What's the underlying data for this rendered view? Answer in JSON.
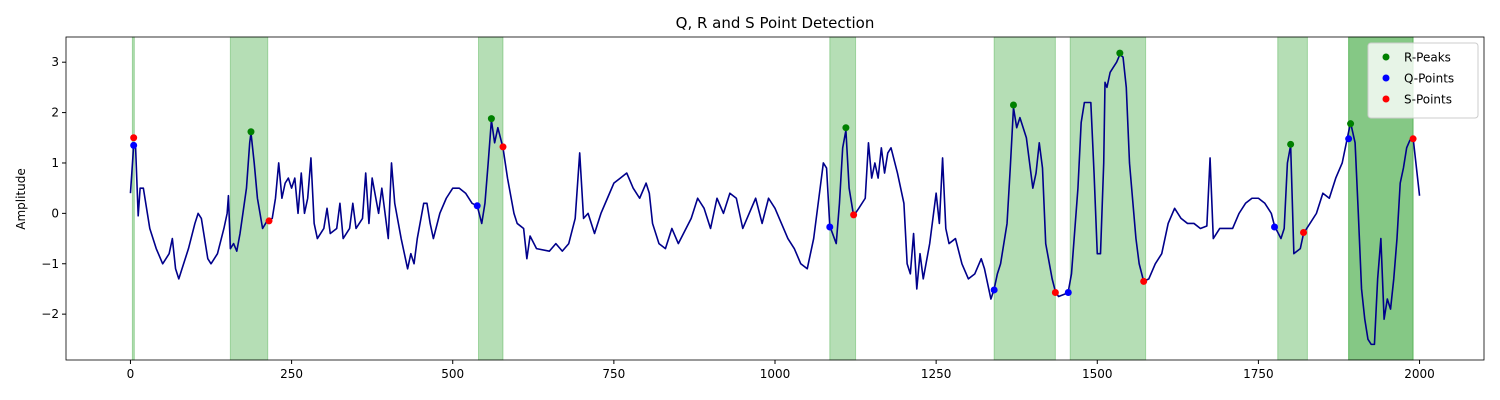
{
  "chart_data": {
    "type": "line",
    "title": "Q, R and S Point Detection",
    "ylabel": "Amplitude",
    "xlim": [
      -100,
      2100
    ],
    "ylim": [
      -2.91,
      3.5
    ],
    "xticks": [
      0,
      250,
      500,
      750,
      1000,
      1250,
      1500,
      1750,
      2000
    ],
    "yticks": [
      {
        "value": -2,
        "label": "−2"
      },
      {
        "value": -1,
        "label": "−1"
      },
      0,
      1,
      2,
      3
    ],
    "legend": "upper right",
    "span_color": "#2ca02c",
    "span_alpha": 0.35,
    "spans": [
      [
        3,
        6
      ],
      [
        155,
        213
      ],
      [
        540,
        578
      ],
      [
        1085,
        1125
      ],
      [
        1340,
        1435
      ],
      [
        1458,
        1575
      ],
      [
        1780,
        1826
      ],
      [
        1890,
        1990
      ],
      [
        1890,
        1990
      ]
    ],
    "signal": {
      "color": "#00008b",
      "x": [
        0,
        5,
        8,
        12,
        15,
        20,
        25,
        30,
        40,
        50,
        60,
        65,
        70,
        75,
        80,
        90,
        100,
        105,
        110,
        120,
        125,
        135,
        145,
        150,
        152,
        155,
        160,
        165,
        170,
        175,
        180,
        185,
        187,
        192,
        197,
        205,
        212,
        220,
        225,
        230,
        235,
        240,
        245,
        250,
        255,
        260,
        265,
        270,
        275,
        280,
        285,
        290,
        300,
        305,
        310,
        320,
        325,
        330,
        340,
        345,
        350,
        360,
        365,
        370,
        375,
        385,
        390,
        400,
        405,
        410,
        420,
        430,
        435,
        440,
        445,
        455,
        460,
        465,
        470,
        480,
        490,
        500,
        510,
        520,
        530,
        538,
        545,
        550,
        555,
        560,
        565,
        570,
        578,
        585,
        595,
        600,
        610,
        615,
        620,
        630,
        650,
        660,
        670,
        680,
        690,
        697,
        703,
        710,
        720,
        730,
        740,
        750,
        760,
        770,
        780,
        790,
        800,
        805,
        810,
        820,
        830,
        840,
        850,
        860,
        870,
        880,
        890,
        900,
        910,
        920,
        930,
        940,
        950,
        960,
        970,
        980,
        990,
        1000,
        1010,
        1020,
        1030,
        1040,
        1050,
        1060,
        1070,
        1075,
        1080,
        1085,
        1095,
        1100,
        1105,
        1110,
        1115,
        1122,
        1130,
        1140,
        1145,
        1150,
        1155,
        1160,
        1165,
        1170,
        1175,
        1180,
        1190,
        1200,
        1205,
        1210,
        1215,
        1220,
        1225,
        1230,
        1240,
        1250,
        1255,
        1260,
        1265,
        1270,
        1280,
        1290,
        1300,
        1310,
        1320,
        1325,
        1335,
        1340,
        1345,
        1350,
        1360,
        1365,
        1370,
        1375,
        1380,
        1390,
        1400,
        1405,
        1410,
        1415,
        1420,
        1430,
        1435,
        1440,
        1450,
        1455,
        1460,
        1470,
        1475,
        1480,
        1490,
        1495,
        1500,
        1505,
        1510,
        1512,
        1515,
        1520,
        1525,
        1530,
        1535,
        1540,
        1545,
        1550,
        1560,
        1565,
        1572,
        1580,
        1590,
        1600,
        1610,
        1620,
        1630,
        1640,
        1650,
        1660,
        1670,
        1675,
        1680,
        1690,
        1700,
        1710,
        1720,
        1730,
        1740,
        1750,
        1760,
        1770,
        1775,
        1785,
        1790,
        1795,
        1800,
        1805,
        1815,
        1820,
        1825,
        1830,
        1840,
        1850,
        1860,
        1870,
        1880,
        1888,
        1893,
        1900,
        1905,
        1910,
        1915,
        1920,
        1925,
        1930,
        1935,
        1940,
        1945,
        1950,
        1955,
        1960,
        1965,
        1970,
        1975,
        1980,
        1985,
        1990,
        2000
      ],
      "values": [
        0.4,
        1.35,
        1.3,
        -0.05,
        0.5,
        0.5,
        0.1,
        -0.3,
        -0.7,
        -1.0,
        -0.8,
        -0.5,
        -1.1,
        -1.3,
        -1.1,
        -0.7,
        -0.2,
        0.0,
        -0.1,
        -0.9,
        -1.0,
        -0.8,
        -0.3,
        0.0,
        0.35,
        -0.7,
        -0.6,
        -0.75,
        -0.4,
        0.05,
        0.5,
        1.4,
        1.6,
        1.0,
        0.3,
        -0.3,
        -0.15,
        -0.1,
        0.3,
        1.0,
        0.3,
        0.6,
        0.7,
        0.5,
        0.7,
        0.0,
        0.8,
        0.0,
        0.3,
        1.1,
        -0.2,
        -0.5,
        -0.3,
        0.1,
        -0.4,
        -0.3,
        0.2,
        -0.5,
        -0.3,
        0.2,
        -0.3,
        -0.1,
        0.8,
        -0.2,
        0.7,
        0.0,
        0.5,
        -0.5,
        1.0,
        0.2,
        -0.5,
        -1.1,
        -0.8,
        -1.0,
        -0.5,
        0.2,
        0.2,
        -0.2,
        -0.5,
        0.0,
        0.3,
        0.5,
        0.5,
        0.4,
        0.2,
        0.15,
        -0.2,
        0.2,
        1.0,
        1.85,
        1.4,
        1.7,
        1.3,
        0.7,
        0.0,
        -0.2,
        -0.3,
        -0.9,
        -0.45,
        -0.7,
        -0.75,
        -0.6,
        -0.75,
        -0.6,
        -0.1,
        1.2,
        -0.1,
        0.0,
        -0.4,
        0.0,
        0.3,
        0.6,
        0.7,
        0.8,
        0.5,
        0.3,
        0.6,
        0.4,
        -0.2,
        -0.6,
        -0.7,
        -0.3,
        -0.6,
        -0.35,
        -0.1,
        0.3,
        0.1,
        -0.3,
        0.3,
        0.0,
        0.4,
        0.3,
        -0.3,
        0.0,
        0.3,
        -0.2,
        0.3,
        0.1,
        -0.2,
        -0.5,
        -0.7,
        -1.0,
        -1.1,
        -0.5,
        0.5,
        1.0,
        0.9,
        -0.25,
        -0.6,
        0.2,
        1.3,
        1.65,
        0.5,
        -0.05,
        0.1,
        0.3,
        1.4,
        0.7,
        1.0,
        0.7,
        1.3,
        0.8,
        1.2,
        1.3,
        0.8,
        0.2,
        -1.0,
        -1.2,
        -0.4,
        -1.5,
        -0.8,
        -1.3,
        -0.6,
        0.4,
        -0.2,
        1.1,
        -0.3,
        -0.6,
        -0.5,
        -1.0,
        -1.3,
        -1.2,
        -0.9,
        -1.1,
        -1.7,
        -1.5,
        -1.2,
        -1.0,
        -0.2,
        0.9,
        2.1,
        1.7,
        1.9,
        1.5,
        0.5,
        0.8,
        1.4,
        0.9,
        -0.6,
        -1.3,
        -1.55,
        -1.65,
        -1.6,
        -1.55,
        -1.2,
        0.5,
        1.8,
        2.2,
        2.2,
        0.8,
        -0.8,
        -0.8,
        1.0,
        2.6,
        2.5,
        2.8,
        2.9,
        3.0,
        3.15,
        3.1,
        2.5,
        1.0,
        -0.5,
        -1.0,
        -1.35,
        -1.3,
        -1.0,
        -0.8,
        -0.2,
        0.1,
        -0.1,
        -0.2,
        -0.2,
        -0.3,
        -0.25,
        1.1,
        -0.5,
        -0.3,
        -0.3,
        -0.3,
        0.0,
        0.2,
        0.3,
        0.3,
        0.2,
        0.0,
        -0.25,
        -0.5,
        -0.3,
        1.0,
        1.35,
        -0.8,
        -0.7,
        -0.4,
        -0.3,
        -0.2,
        0.0,
        0.4,
        0.3,
        0.7,
        1.0,
        1.5,
        1.8,
        1.4,
        0.0,
        -1.5,
        -2.1,
        -2.5,
        -2.6,
        -2.6,
        -1.3,
        -0.5,
        -2.1,
        -1.7,
        -1.9,
        -1.3,
        -0.5,
        0.6,
        0.9,
        1.3,
        1.45,
        1.5,
        0.35
      ]
    },
    "series": [
      {
        "name": "R-Peaks",
        "color": "#008000",
        "x": [
          187,
          560,
          1110,
          1370,
          1535,
          1800,
          1893
        ],
        "values": [
          1.62,
          1.88,
          1.7,
          2.15,
          3.18,
          1.37,
          1.78
        ]
      },
      {
        "name": "Q-Points",
        "color": "#0000ff",
        "x": [
          5,
          538,
          1085,
          1340,
          1455,
          1775,
          1890
        ],
        "values": [
          1.35,
          0.15,
          -0.27,
          -1.52,
          -1.57,
          -0.27,
          1.48
        ]
      },
      {
        "name": "S-Points",
        "color": "#ff0000",
        "x": [
          5,
          215,
          578,
          1122,
          1435,
          1572,
          1820,
          1990
        ],
        "values": [
          1.5,
          -0.15,
          1.32,
          -0.03,
          -1.57,
          -1.35,
          -0.38,
          1.48
        ]
      }
    ]
  }
}
